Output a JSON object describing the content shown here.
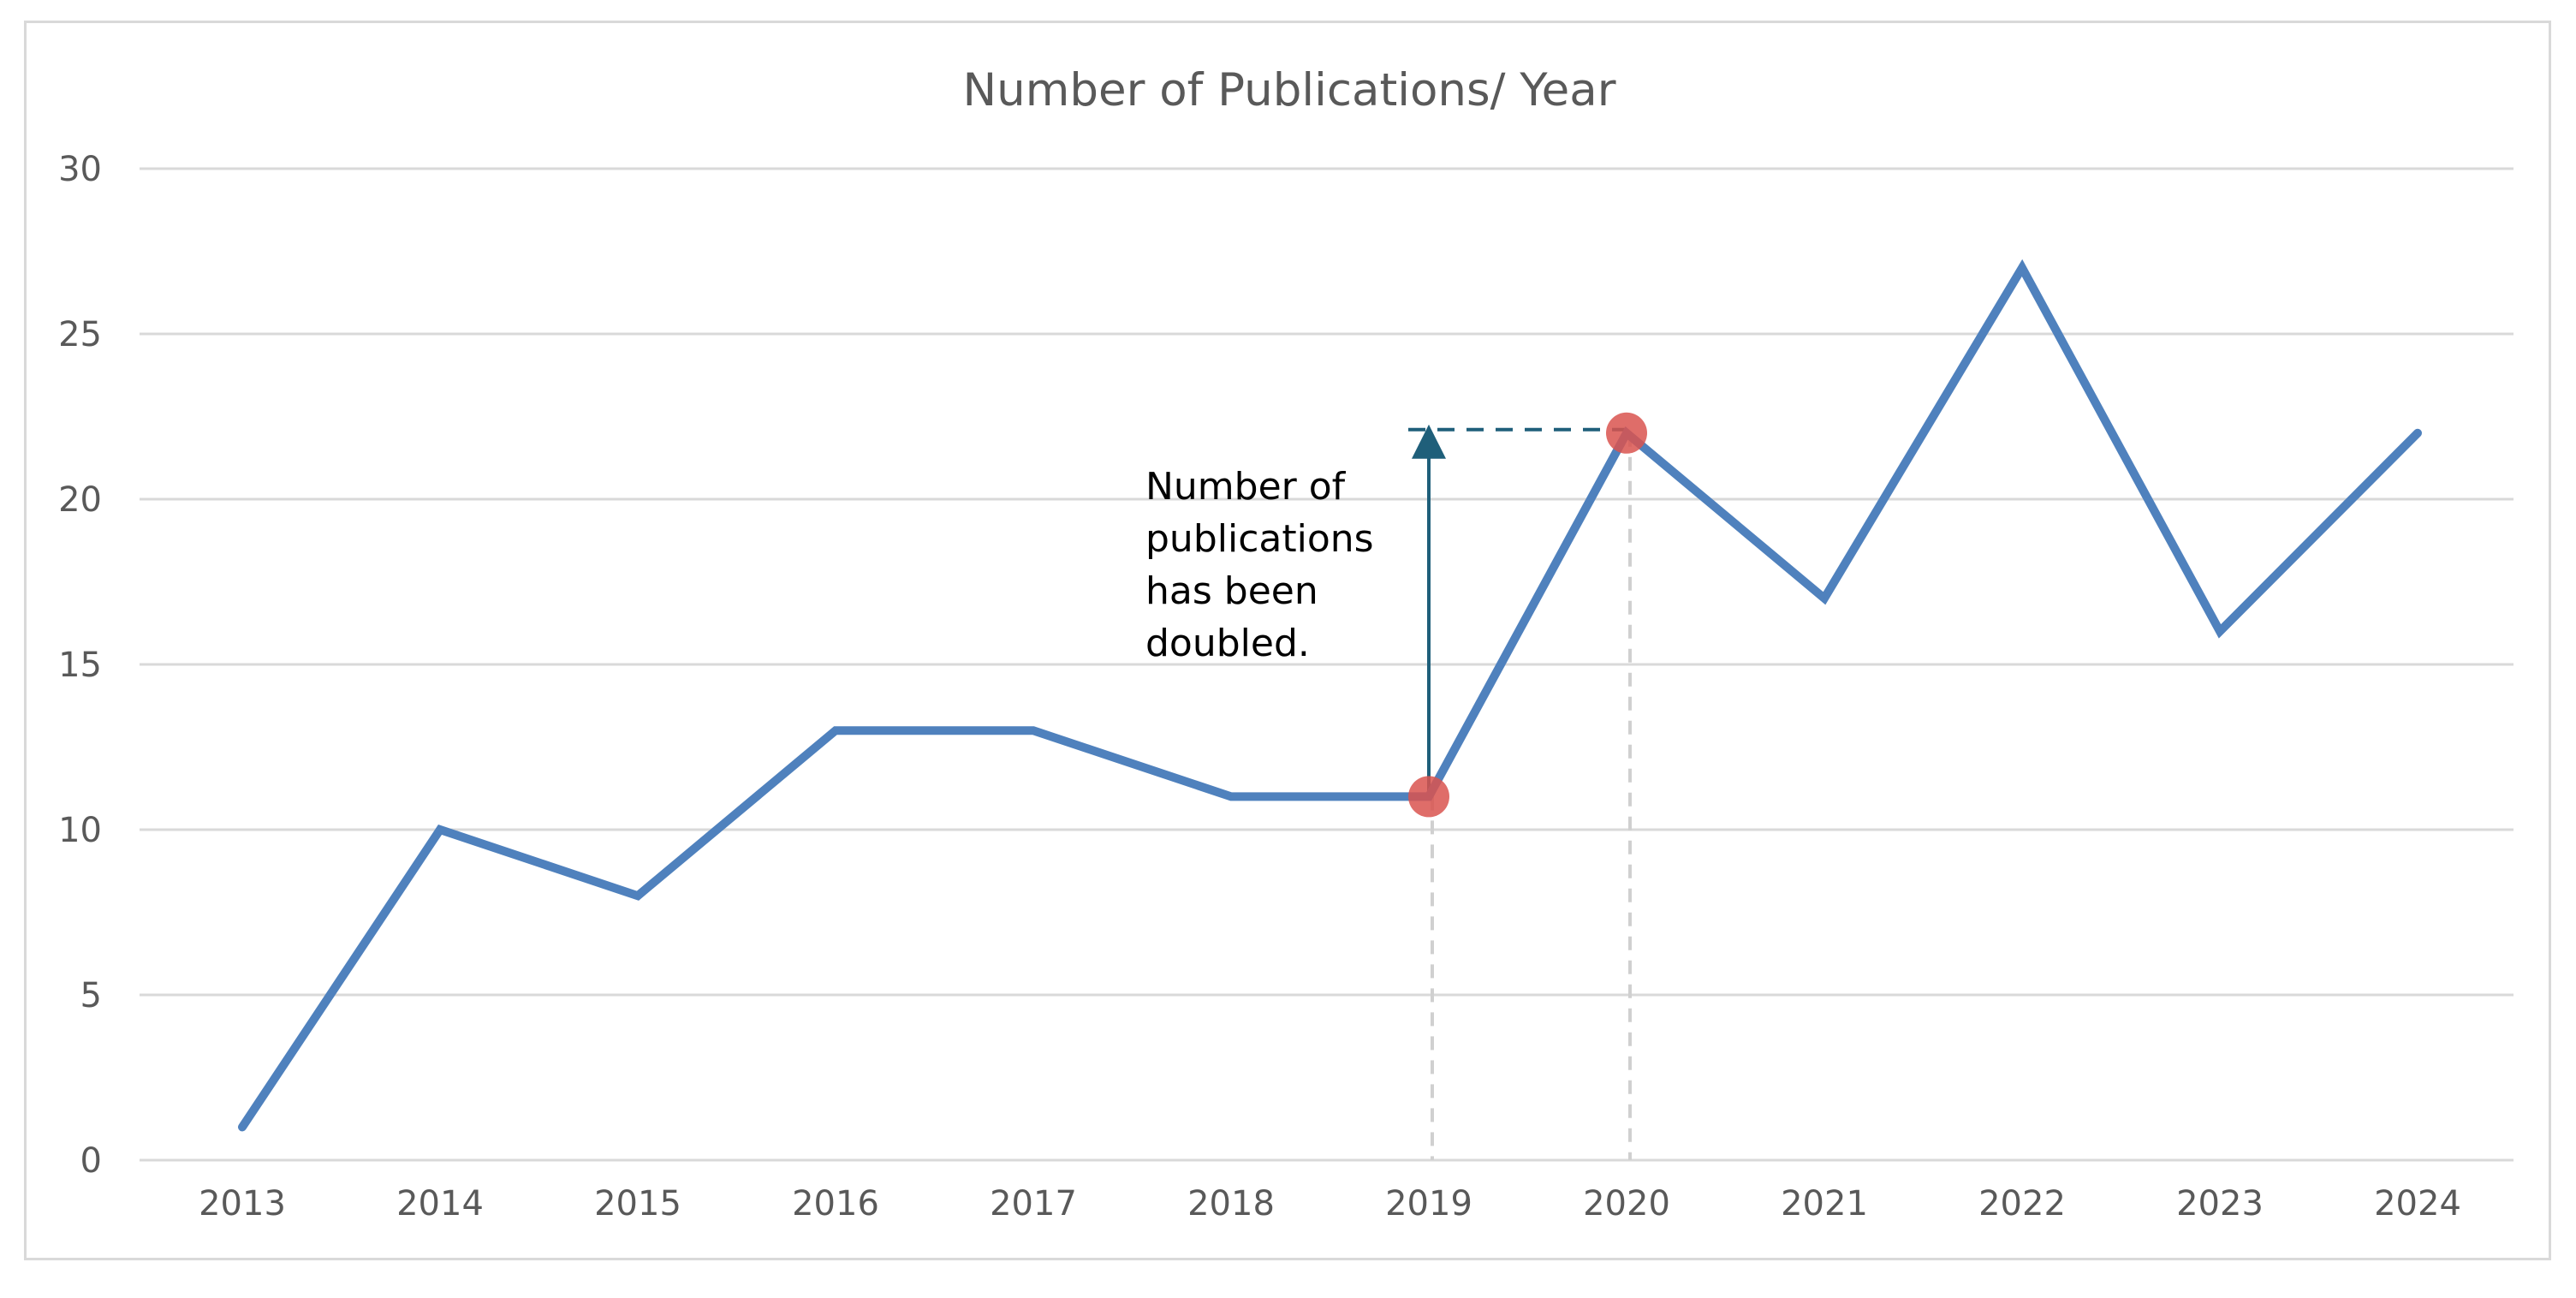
{
  "chart_data": {
    "type": "line",
    "title": "Number of Publications/ Year",
    "xlabel": "",
    "ylabel": "",
    "categories": [
      "2013",
      "2014",
      "2015",
      "2016",
      "2017",
      "2018",
      "2019",
      "2020",
      "2021",
      "2022",
      "2023",
      "2024"
    ],
    "series": [
      {
        "values": [
          1,
          10,
          8,
          13,
          13,
          11,
          11,
          22,
          17,
          27,
          16,
          22
        ],
        "color": "#4f81bd"
      }
    ],
    "ylim": [
      0,
      30
    ],
    "yticks": [
      0,
      5,
      10,
      15,
      20,
      25,
      30
    ],
    "grid": true,
    "legend": "none",
    "highlighted_points": [
      {
        "x": "2019",
        "y": 11,
        "color": "#d9534f"
      },
      {
        "x": "2020",
        "y": 22,
        "color": "#d9534f"
      }
    ],
    "annotation": {
      "lines": [
        "Number of",
        "publications",
        "has been",
        "doubled."
      ],
      "arrow_from": {
        "x": "2019",
        "y": 11
      },
      "arrow_to": {
        "x": "2019",
        "y": 22
      },
      "arrow_color": "#1f5f7a"
    },
    "colors": {
      "grid": "#d9d9d9",
      "text": "#595959",
      "drop_line": "#d0d0d0"
    }
  }
}
